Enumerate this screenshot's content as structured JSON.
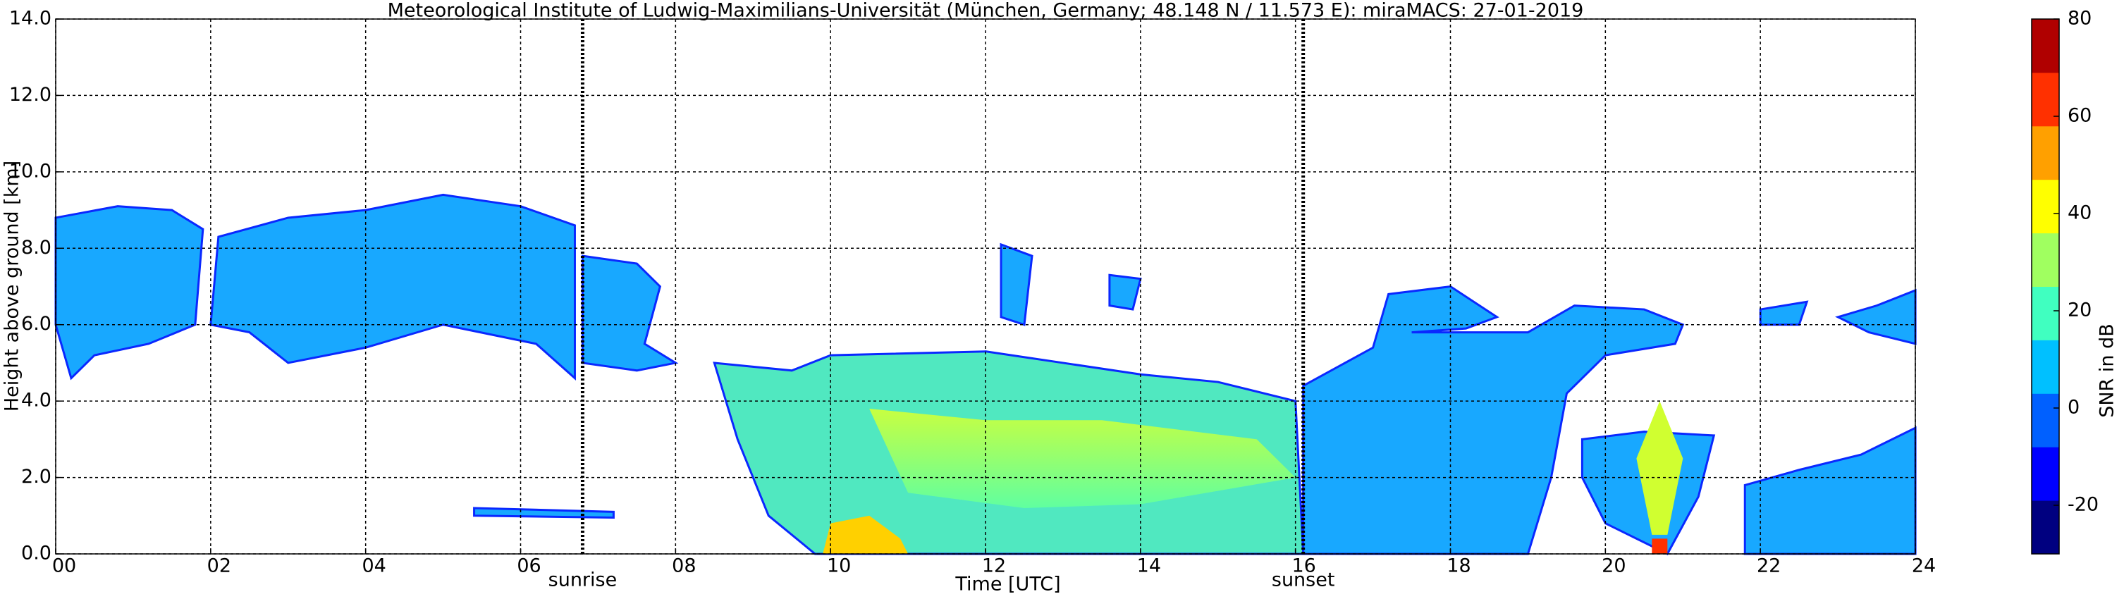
{
  "chart_data": {
    "type": "heatmap",
    "title": "Meteorological Institute of Ludwig-Maximilians-Universität (München, Germany; 48.148 N / 11.573 E):    miraMACS: 27-01-2019",
    "x_label": "Time [UTC]",
    "y_label": "Height above ground [km]",
    "xlim": [
      0,
      24
    ],
    "xticks": [
      {
        "value": 0,
        "label": "00"
      },
      {
        "value": 2,
        "label": "02"
      },
      {
        "value": 4,
        "label": "04"
      },
      {
        "value": 6,
        "label": "06"
      },
      {
        "value": 8,
        "label": "08"
      },
      {
        "value": 10,
        "label": "10"
      },
      {
        "value": 12,
        "label": "12"
      },
      {
        "value": 14,
        "label": "14"
      },
      {
        "value": 16,
        "label": "16"
      },
      {
        "value": 18,
        "label": "18"
      },
      {
        "value": 20,
        "label": "20"
      },
      {
        "value": 22,
        "label": "22"
      },
      {
        "value": 24,
        "label": "24"
      }
    ],
    "ylim": [
      0,
      14
    ],
    "yticks": [
      {
        "value": 0,
        "label": "0.0"
      },
      {
        "value": 2,
        "label": "2.0"
      },
      {
        "value": 4,
        "label": "4.0"
      },
      {
        "value": 6,
        "label": "6.0"
      },
      {
        "value": 8,
        "label": "8.0"
      },
      {
        "value": 10,
        "label": "10.0"
      },
      {
        "value": 12,
        "label": "12.0"
      },
      {
        "value": 14,
        "label": "14.0"
      }
    ],
    "grid": true,
    "annotations": [
      {
        "x": 6.8,
        "label": "sunrise"
      },
      {
        "x": 16.1,
        "label": "sunset"
      }
    ],
    "colorbar": {
      "label": "SNR in dB",
      "lim": [
        -30,
        80
      ],
      "ticks": [
        -20,
        0,
        20,
        40,
        60,
        80
      ],
      "colors": [
        "#000080",
        "#0000ff",
        "#0060ff",
        "#00c0ff",
        "#40ffc0",
        "#a0ff60",
        "#ffff00",
        "#ffa000",
        "#ff3000",
        "#b00000"
      ]
    }
  }
}
